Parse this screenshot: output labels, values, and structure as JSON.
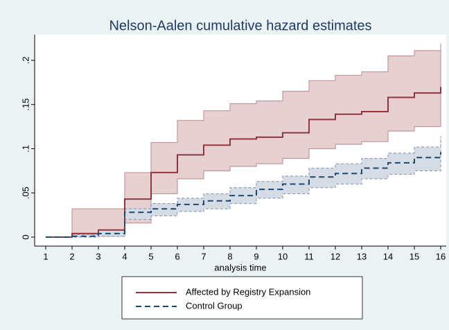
{
  "chart_data": {
    "type": "step-band",
    "title": "Nelson-Aalen cumulative hazard estimates",
    "x_label": "analysis time",
    "x": [
      1,
      2,
      3,
      4,
      5,
      6,
      7,
      8,
      9,
      10,
      11,
      12,
      13,
      14,
      15,
      16
    ],
    "xlim": [
      1,
      16
    ],
    "xticks": [
      1,
      2,
      3,
      4,
      5,
      6,
      7,
      8,
      9,
      10,
      11,
      12,
      13,
      14,
      15,
      16
    ],
    "ylim": [
      0,
      0.2
    ],
    "yticks": [
      0,
      {
        "value": 0.05,
        "label": ".05"
      },
      {
        "value": 0.1,
        "label": ".1"
      },
      {
        "value": 0.15,
        "label": ".15"
      },
      {
        "value": 0.2,
        "label": ".2"
      }
    ],
    "series": [
      {
        "name": "Affected by Registry Expansion",
        "color": "#90353b",
        "band_color": "#e6d0d2",
        "band_edge": "#c0989b",
        "dash": false,
        "values": [
          0,
          0.004,
          0.008,
          0.043,
          0.073,
          0.093,
          0.104,
          0.111,
          0.113,
          0.118,
          0.133,
          0.139,
          0.142,
          0.158,
          0.163,
          0.17
        ],
        "upper": [
          0,
          0.032,
          0.032,
          0.073,
          0.107,
          0.132,
          0.143,
          0.151,
          0.154,
          0.165,
          0.177,
          0.183,
          0.187,
          0.205,
          0.211,
          0.219
        ],
        "lower": [
          0,
          0.0005,
          0.001,
          0.016,
          0.049,
          0.066,
          0.075,
          0.08,
          0.083,
          0.089,
          0.1,
          0.105,
          0.108,
          0.12,
          0.125,
          0.133
        ]
      },
      {
        "name": "Control Group",
        "color": "#1a476f",
        "band_color": "#d6dce5",
        "band_edge": "#8aa0b8",
        "dash": true,
        "values": [
          0,
          0.001,
          0.004,
          0.028,
          0.032,
          0.037,
          0.041,
          0.047,
          0.054,
          0.06,
          0.068,
          0.072,
          0.078,
          0.084,
          0.09,
          0.096
        ],
        "upper": [
          0,
          0.003,
          0.008,
          0.032,
          0.038,
          0.044,
          0.049,
          0.056,
          0.063,
          0.069,
          0.078,
          0.083,
          0.089,
          0.095,
          0.102,
          0.114
        ],
        "lower": [
          0,
          0,
          0.001,
          0.02,
          0.024,
          0.029,
          0.032,
          0.038,
          0.044,
          0.049,
          0.056,
          0.06,
          0.066,
          0.071,
          0.075,
          0.082
        ]
      }
    ]
  }
}
